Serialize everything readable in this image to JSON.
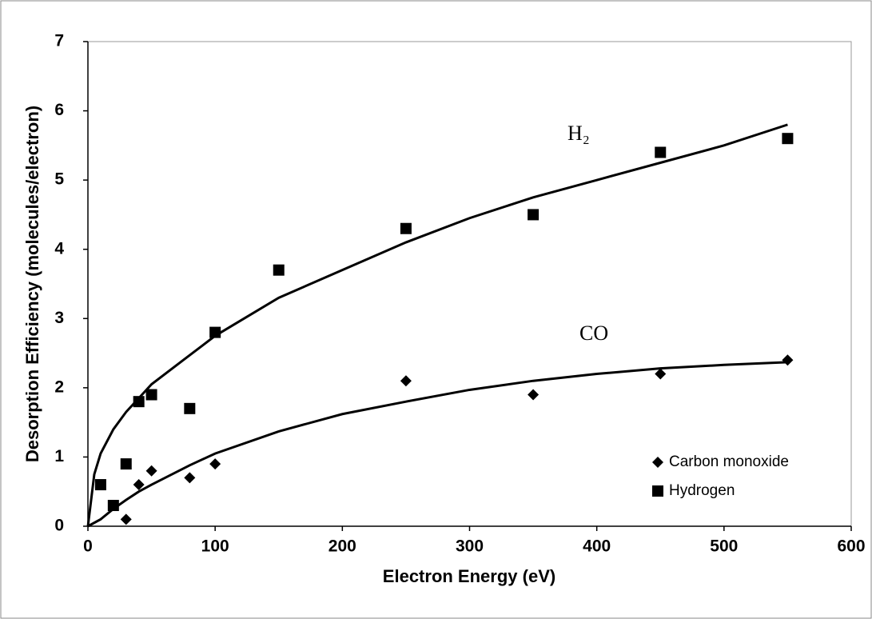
{
  "chart_data": {
    "type": "scatter",
    "xlabel": "Electron Energy (eV)",
    "ylabel": "Desorption Efficiency (molecules/electron)",
    "xlim": [
      0,
      600
    ],
    "xticks": [
      0,
      100,
      200,
      300,
      400,
      500,
      600
    ],
    "ylim": [
      0,
      7
    ],
    "yticks": [
      0,
      1,
      2,
      3,
      4,
      5,
      6,
      7
    ],
    "grid": false,
    "legend": "lower right",
    "series": [
      {
        "name": "Carbon monoxide",
        "color": "#000000",
        "marker": "diamond",
        "x": [
          30,
          40,
          50,
          80,
          100,
          250,
          350,
          450,
          550
        ],
        "values": [
          0.1,
          0.6,
          0.8,
          0.7,
          0.9,
          2.1,
          1.9,
          2.2,
          2.4
        ]
      },
      {
        "name": "Hydrogen",
        "color": "#000000",
        "marker": "square",
        "x": [
          10,
          20,
          30,
          40,
          50,
          80,
          100,
          150,
          250,
          350,
          450,
          550
        ],
        "values": [
          0.6,
          0.3,
          0.9,
          1.8,
          1.9,
          1.7,
          2.8,
          3.7,
          4.3,
          4.5,
          5.4,
          5.6
        ]
      }
    ],
    "fits": [
      {
        "label": "H₂",
        "color": "#000000",
        "x": [
          0,
          5,
          10,
          20,
          30,
          40,
          50,
          75,
          100,
          150,
          200,
          250,
          300,
          350,
          400,
          450,
          500,
          550
        ],
        "values": [
          0,
          0.75,
          1.05,
          1.4,
          1.65,
          1.85,
          2.05,
          2.4,
          2.75,
          3.3,
          3.7,
          4.1,
          4.45,
          4.75,
          5.0,
          5.25,
          5.5,
          5.8
        ]
      },
      {
        "label": "CO",
        "color": "#000000",
        "x": [
          0,
          10,
          20,
          30,
          40,
          50,
          80,
          100,
          150,
          200,
          250,
          300,
          350,
          400,
          450,
          500,
          550
        ],
        "values": [
          0,
          0.1,
          0.25,
          0.38,
          0.5,
          0.6,
          0.88,
          1.05,
          1.37,
          1.62,
          1.8,
          1.97,
          2.1,
          2.2,
          2.28,
          2.33,
          2.37
        ]
      }
    ]
  }
}
